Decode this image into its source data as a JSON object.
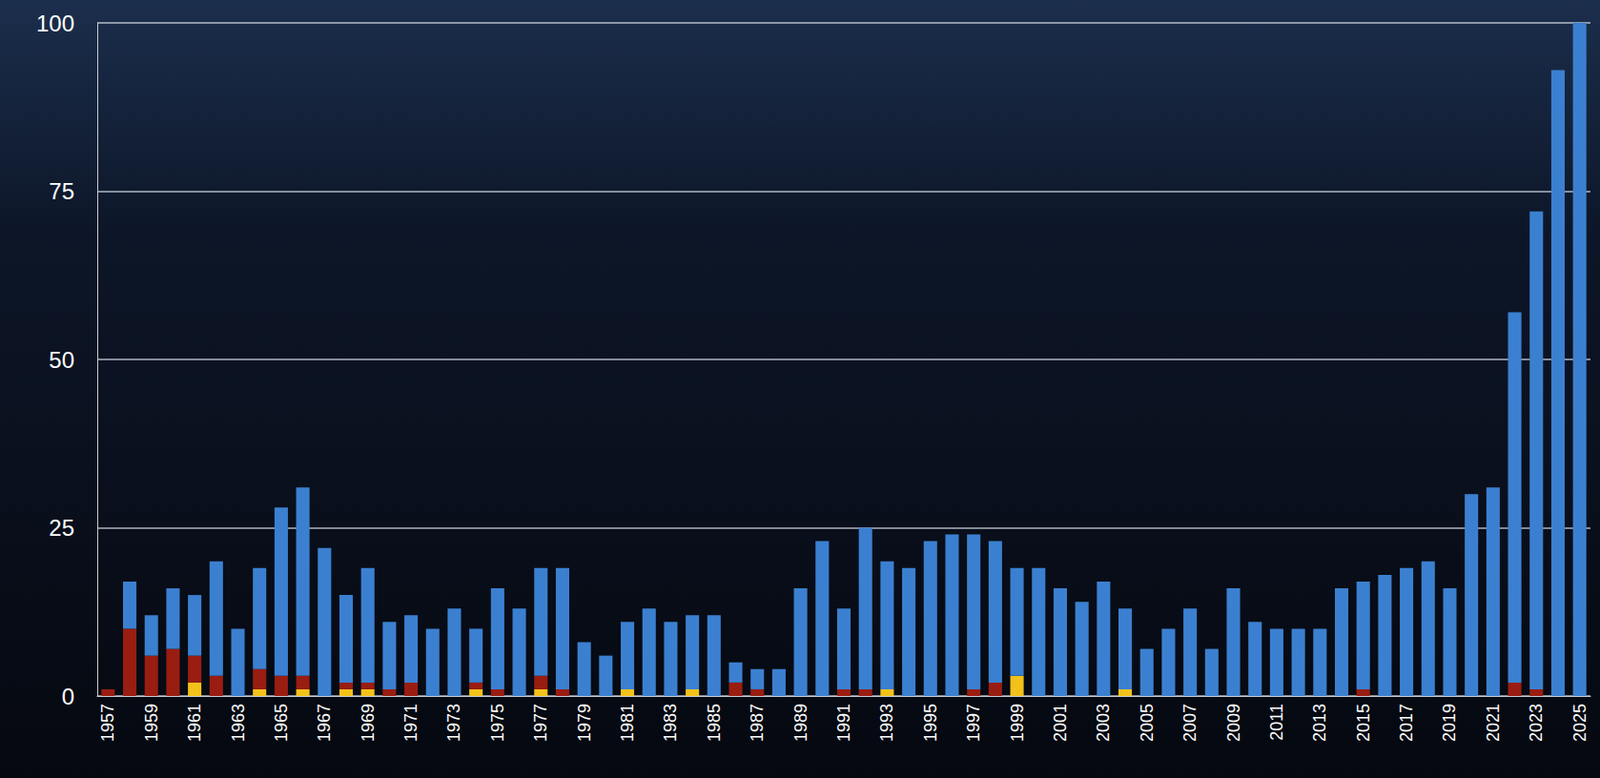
{
  "chart_data": {
    "type": "bar",
    "stacked": true,
    "grid": true,
    "categories": [
      "1957",
      null,
      "1959",
      null,
      "1961",
      null,
      "1963",
      null,
      "1965",
      null,
      "1967",
      null,
      "1969",
      null,
      "1971",
      null,
      "1973",
      null,
      "1975",
      null,
      "1977",
      null,
      "1979",
      null,
      "1981",
      null,
      "1983",
      null,
      "1985",
      null,
      "1987",
      null,
      "1989",
      null,
      "1991",
      null,
      "1993",
      null,
      "1995",
      null,
      "1997",
      null,
      "1999",
      null,
      "2001",
      null,
      "2003",
      null,
      "2005",
      null,
      "2007",
      null,
      "2009",
      null,
      "2011",
      null,
      "2013",
      null,
      "2015",
      null,
      "2017",
      null,
      "2019",
      null,
      "2021",
      null,
      "2023",
      null,
      "2025"
    ],
    "series": [
      {
        "color": "#f2c21b",
        "values": [
          0,
          0,
          0,
          0,
          2,
          0,
          0,
          1,
          0,
          1,
          0,
          1,
          1,
          0,
          0,
          0,
          0,
          1,
          0,
          0,
          1,
          0,
          0,
          0,
          1,
          0,
          0,
          1,
          0,
          0,
          0,
          0,
          0,
          0,
          0,
          0,
          1,
          0,
          0,
          0,
          0,
          0,
          3,
          0,
          0,
          0,
          0,
          1,
          0,
          0,
          0,
          0,
          0,
          0,
          0,
          0,
          0,
          0,
          0,
          0,
          0,
          0,
          0,
          0,
          0,
          0,
          0,
          0,
          0
        ]
      },
      {
        "color": "#9a1d12",
        "values": [
          1,
          10,
          6,
          7,
          4,
          3,
          0,
          3,
          3,
          2,
          0,
          1,
          1,
          1,
          2,
          0,
          0,
          1,
          1,
          0,
          2,
          1,
          0,
          0,
          0,
          0,
          0,
          0,
          0,
          2,
          1,
          0,
          0,
          0,
          1,
          1,
          0,
          0,
          0,
          0,
          1,
          2,
          0,
          0,
          0,
          0,
          0,
          0,
          0,
          0,
          0,
          0,
          0,
          0,
          0,
          0,
          0,
          0,
          1,
          0,
          0,
          0,
          0,
          0,
          0,
          2,
          1,
          0,
          0
        ]
      },
      {
        "color": "#3b80d0",
        "values": [
          0,
          7,
          6,
          9,
          9,
          17,
          10,
          15,
          25,
          28,
          22,
          13,
          17,
          10,
          10,
          10,
          13,
          8,
          15,
          13,
          16,
          18,
          8,
          6,
          10,
          13,
          11,
          11,
          12,
          3,
          3,
          4,
          16,
          23,
          12,
          24,
          19,
          19,
          23,
          24,
          23,
          21,
          16,
          19,
          16,
          14,
          17,
          12,
          7,
          10,
          13,
          7,
          16,
          11,
          10,
          10,
          10,
          16,
          16,
          18,
          19,
          20,
          16,
          30,
          31,
          55,
          71,
          93,
          100
        ]
      }
    ],
    "ylim": [
      0,
      100
    ],
    "yticks": [
      0,
      25,
      50,
      75,
      100
    ]
  }
}
